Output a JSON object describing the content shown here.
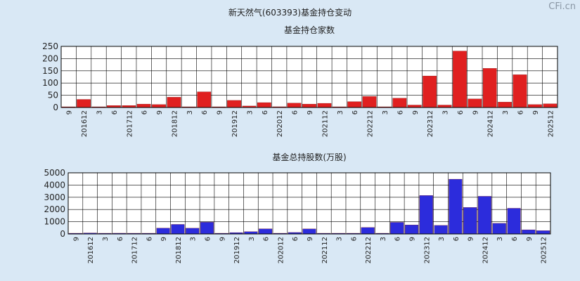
{
  "title": "新天然气(603393)基金持仓变动",
  "watermark": "CFi.cn",
  "colors": {
    "background": "#d9e8f5",
    "plot_bg": "#ffffff",
    "grid": "#000000",
    "bar_red": "#e02020",
    "bar_blue": "#2c2cdc"
  },
  "chart_data": [
    {
      "type": "bar",
      "title": "基金持仓家数",
      "ylim": [
        0,
        250
      ],
      "yticks": [
        0,
        50,
        100,
        150,
        200,
        250
      ],
      "bar_color": "#e02020",
      "categories": [
        "9",
        "201612",
        "3",
        "6",
        "201712",
        "6",
        "9",
        "201812",
        "3",
        "6",
        "9",
        "201912",
        "3",
        "6",
        "202012",
        "6",
        "9",
        "202112",
        "3",
        "6",
        "202212",
        "3",
        "6",
        "9",
        "202312",
        "3",
        "6",
        "9",
        "202412",
        "3",
        "6",
        "9",
        "202512"
      ],
      "values": [
        2,
        33,
        1,
        8,
        8,
        14,
        12,
        42,
        2,
        64,
        1,
        29,
        6,
        20,
        3,
        18,
        14,
        17,
        2,
        24,
        45,
        2,
        38,
        10,
        129,
        10,
        231,
        35,
        160,
        22,
        134,
        12,
        15
      ]
    },
    {
      "type": "bar",
      "title": "基金总持股数(万股)",
      "ylim": [
        0,
        5000
      ],
      "yticks": [
        0,
        1000,
        2000,
        3000,
        4000,
        5000
      ],
      "bar_color": "#2c2cdc",
      "categories": [
        "9",
        "201612",
        "3",
        "6",
        "201712",
        "6",
        "9",
        "201812",
        "3",
        "6",
        "9",
        "201912",
        "3",
        "6",
        "202012",
        "6",
        "9",
        "202112",
        "3",
        "6",
        "202212",
        "3",
        "6",
        "9",
        "202312",
        "3",
        "6",
        "9",
        "202412",
        "3",
        "6",
        "9",
        "202512"
      ],
      "values": [
        30,
        80,
        20,
        60,
        40,
        40,
        480,
        780,
        470,
        960,
        20,
        110,
        190,
        420,
        50,
        120,
        410,
        30,
        20,
        40,
        530,
        40,
        950,
        740,
        3150,
        700,
        4480,
        2170,
        3080,
        870,
        2100,
        340,
        270
      ]
    }
  ]
}
